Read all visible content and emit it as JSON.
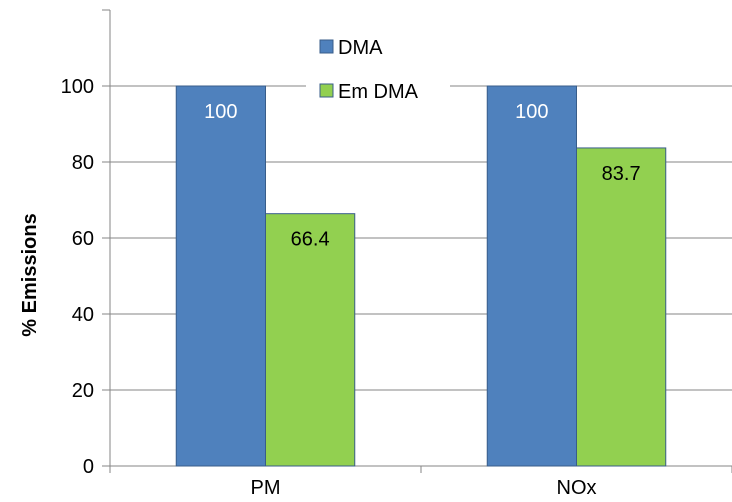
{
  "chart_data": {
    "type": "bar",
    "title": "",
    "xlabel": "",
    "ylabel": "% Emissions",
    "ylim": [
      0,
      120
    ],
    "yticks": [
      0,
      20,
      40,
      60,
      80,
      100
    ],
    "grid": true,
    "legend_position": "top-center",
    "categories": [
      "PM",
      "NOx"
    ],
    "series": [
      {
        "name": "DMA",
        "values": [
          100,
          100
        ],
        "color": "#4F81BD",
        "label_color": "#ffffff"
      },
      {
        "name": "Em DMA",
        "values": [
          66.4,
          83.7
        ],
        "color": "#92D050",
        "label_color": "#000000"
      }
    ]
  }
}
